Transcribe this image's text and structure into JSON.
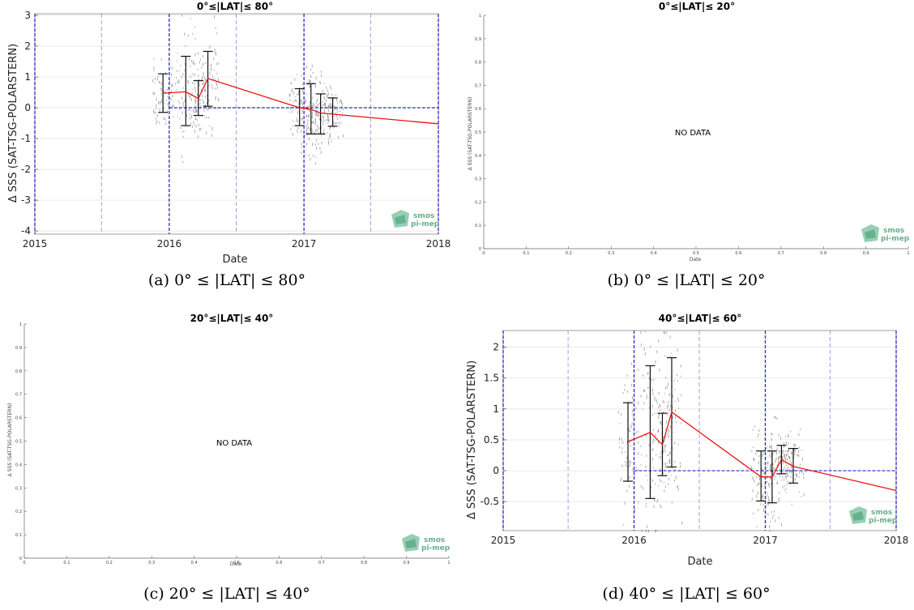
{
  "captions": [
    "(a) 0° ≤ |LAT| ≤ 80°",
    "(b) 0° ≤ |LAT| ≤ 20°",
    "(c) 20° ≤ |LAT| ≤ 40°",
    "(d) 40° ≤ |LAT| ≤ 60°"
  ],
  "logo": {
    "line1": "smos",
    "line2": "pi-mep"
  },
  "colors": {
    "line": "#ee1111",
    "zero": "#1f2fbf",
    "vgrid_major": "#2a2acc",
    "vgrid_minor": "#8a8ae0",
    "scatter": "#444444"
  },
  "chart_data": [
    {
      "type": "line",
      "title": "0°≤|LAT|≤ 80°",
      "xlabel": "Date",
      "ylabel": "Δ SSS (SAT-TSG-POLARSTERN)",
      "xlim": [
        "2015-01-01",
        "2018-01-01"
      ],
      "ylim": [
        -4.1,
        3.05
      ],
      "x_ticks": [
        "2015",
        "2016",
        "2017",
        "2018"
      ],
      "y_ticks": [
        "-4",
        "-3",
        "-2",
        "-1",
        "0",
        "1",
        "2",
        "3"
      ],
      "y_tick_values": [
        -4,
        -3,
        -2,
        -1,
        0,
        1,
        2,
        3
      ],
      "grid": true,
      "series": [
        {
          "x": [
            "2015-12-15",
            "2016-02-15",
            "2016-03-20",
            "2016-04-15",
            "2016-12-20",
            "2017-01-20",
            "2017-02-15",
            "2018-01-01"
          ],
          "y": [
            0.47,
            0.52,
            0.3,
            0.95,
            0.0,
            -0.05,
            -0.17,
            -0.52
          ]
        }
      ],
      "error_bars": [
        {
          "x": "2015-12-15",
          "low": -0.15,
          "high": 1.1
        },
        {
          "x": "2016-02-15",
          "low": -0.58,
          "high": 1.67
        },
        {
          "x": "2016-03-20",
          "low": -0.25,
          "high": 0.88
        },
        {
          "x": "2016-04-15",
          "low": 0.05,
          "high": 1.83
        },
        {
          "x": "2016-12-20",
          "low": -0.58,
          "high": 0.62
        },
        {
          "x": "2017-01-20",
          "low": -0.85,
          "high": 0.78
        },
        {
          "x": "2017-02-15",
          "low": -0.85,
          "high": 0.45
        },
        {
          "x": "2017-03-20",
          "low": -0.6,
          "high": 0.32
        }
      ]
    },
    {
      "type": "line",
      "title": "0°≤|LAT|≤ 20°",
      "xlabel": "Date",
      "ylabel": "Δ SSS (SAT-TSG-POLARSTERN)",
      "xlim": [
        0,
        1
      ],
      "ylim": [
        0,
        1
      ],
      "x_ticks": [
        "0",
        "0.1",
        "0.2",
        "0.3",
        "0.4",
        "0.5",
        "0.6",
        "0.7",
        "0.8",
        "0.9",
        "1"
      ],
      "y_ticks": [
        "0",
        "0.1",
        "0.2",
        "0.3",
        "0.4",
        "0.5",
        "0.6",
        "0.7",
        "0.8",
        "0.9",
        "1"
      ],
      "annotation": "NO DATA"
    },
    {
      "type": "line",
      "title": "20°≤|LAT|≤ 40°",
      "xlabel": "Date",
      "ylabel": "Δ SSS (SAT-TSG-POLARSTERN)",
      "xlim": [
        0,
        1
      ],
      "ylim": [
        0,
        1
      ],
      "x_ticks": [
        "0",
        "0.1",
        "0.2",
        "0.3",
        "0.4",
        "0.5",
        "0.6",
        "0.7",
        "0.8",
        "0.9",
        "1"
      ],
      "y_ticks": [
        "0",
        "0.1",
        "0.2",
        "0.3",
        "0.4",
        "0.5",
        "0.6",
        "0.7",
        "0.8",
        "0.9",
        "1"
      ],
      "annotation": "NO DATA"
    },
    {
      "type": "line",
      "title": "40°≤|LAT|≤ 60°",
      "xlabel": "Date",
      "ylabel": "Δ SSS (SAT-TSG-POLARSTERN)",
      "xlim": [
        "2015-01-01",
        "2018-01-01"
      ],
      "ylim": [
        -0.97,
        2.27
      ],
      "x_ticks": [
        "2015",
        "2016",
        "2017",
        "2018"
      ],
      "y_ticks": [
        "-0.5",
        "0",
        "0.5",
        "1",
        "1.5",
        "2"
      ],
      "y_tick_values": [
        -0.5,
        0,
        0.5,
        1,
        1.5,
        2
      ],
      "grid": true,
      "series": [
        {
          "x": [
            "2015-12-15",
            "2016-02-15",
            "2016-03-20",
            "2016-04-15",
            "2016-12-20",
            "2017-01-20",
            "2017-02-15",
            "2017-03-20",
            "2018-01-01"
          ],
          "y": [
            0.47,
            0.62,
            0.42,
            0.95,
            -0.1,
            -0.1,
            0.18,
            0.07,
            -0.32
          ]
        }
      ],
      "error_bars": [
        {
          "x": "2015-12-15",
          "low": -0.17,
          "high": 1.1
        },
        {
          "x": "2016-02-15",
          "low": -0.45,
          "high": 1.7
        },
        {
          "x": "2016-03-20",
          "low": -0.08,
          "high": 0.93
        },
        {
          "x": "2016-04-15",
          "low": 0.06,
          "high": 1.83
        },
        {
          "x": "2016-12-20",
          "low": -0.49,
          "high": 0.32
        },
        {
          "x": "2017-01-20",
          "low": -0.52,
          "high": 0.32
        },
        {
          "x": "2017-02-15",
          "low": -0.05,
          "high": 0.41
        },
        {
          "x": "2017-03-20",
          "low": -0.2,
          "high": 0.36
        }
      ]
    }
  ]
}
